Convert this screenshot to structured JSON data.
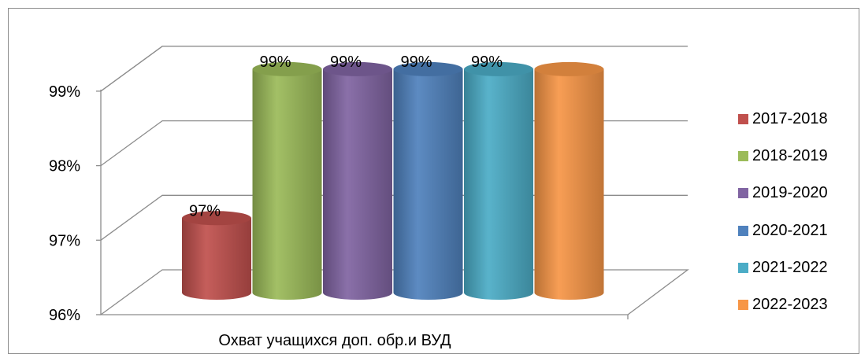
{
  "chart_data": {
    "type": "bar",
    "xlabel": "Охват учащихся доп. обр.и ВУД",
    "ylabel": "",
    "ylim": [
      96,
      99
    ],
    "yticks": [
      "96%",
      "97%",
      "98%",
      "99%"
    ],
    "grid": true,
    "legend_position": "right",
    "series": [
      {
        "name": "2017-2018",
        "value": 97,
        "label": "97%",
        "color": "#c0504d"
      },
      {
        "name": "2018-2019",
        "value": 99,
        "label": "99%",
        "color": "#9bbb59"
      },
      {
        "name": "2019-2020",
        "value": 99,
        "label": "99%",
        "color": "#8064a2"
      },
      {
        "name": "2020-2021",
        "value": 99,
        "label": "99%",
        "color": "#4f81bd"
      },
      {
        "name": "2021-2022",
        "value": 99,
        "label": "99%",
        "color": "#4bacc6"
      },
      {
        "name": "2022-2023",
        "value": 99,
        "label": "",
        "color": "#f79646"
      }
    ]
  }
}
